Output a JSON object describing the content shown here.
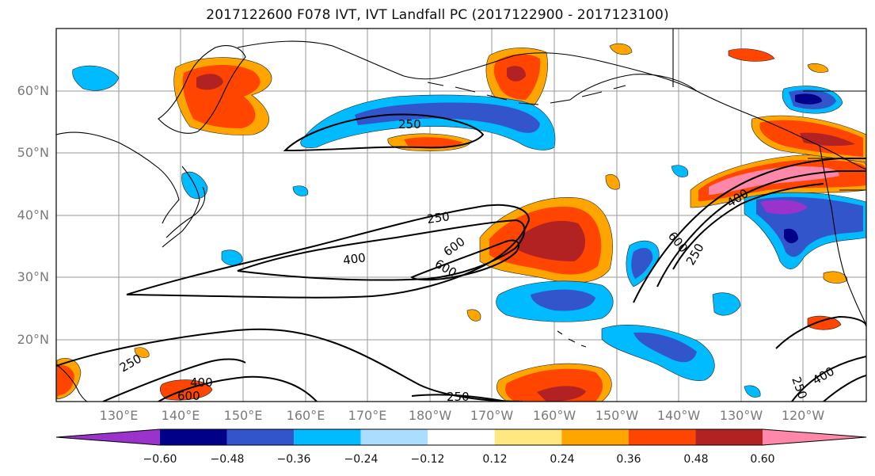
{
  "title": "2017122600 F078 IVT, IVT Landfall PC (2017122900 - 2017123100)",
  "lat_labels": [
    "60°N",
    "50°N",
    "40°N",
    "30°N",
    "20°N"
  ],
  "lon_labels": [
    "130°E",
    "140°E",
    "150°E",
    "160°E",
    "170°E",
    "180°W",
    "170°W",
    "160°W",
    "150°W",
    "140°W",
    "130°W",
    "120°W"
  ],
  "contour_labels": {
    "c250_a": "250",
    "c250_b": "250",
    "c250_c": "250",
    "c250_d": "250",
    "c250_e": "250",
    "c250_f": "250",
    "c400_a": "400",
    "c400_b": "400",
    "c400_c": "400",
    "c400_d": "400",
    "c600_a": "600",
    "c600_b": "600",
    "c600_c": "600",
    "c600_d": "600"
  },
  "colorbar": {
    "ticks": [
      "−0.60",
      "−0.48",
      "−0.36",
      "−0.24",
      "−0.12",
      "0.12",
      "0.24",
      "0.36",
      "0.48",
      "0.60"
    ],
    "colors": [
      "#9933cc",
      "#000088",
      "#3355cc",
      "#00bbff",
      "#aaddff",
      "#ffffff",
      "#ffe880",
      "#ffa500",
      "#ff4500",
      "#b22222",
      "#ff88aa"
    ]
  }
}
